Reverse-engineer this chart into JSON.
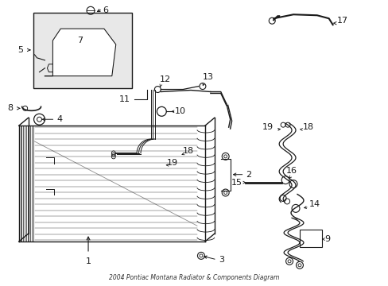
{
  "bg_color": "#ffffff",
  "line_color": "#1a1a1a",
  "fig_width": 4.89,
  "fig_height": 3.6,
  "dpi": 100,
  "title": "2004 Pontiac Montana Radiator & Components Diagram"
}
